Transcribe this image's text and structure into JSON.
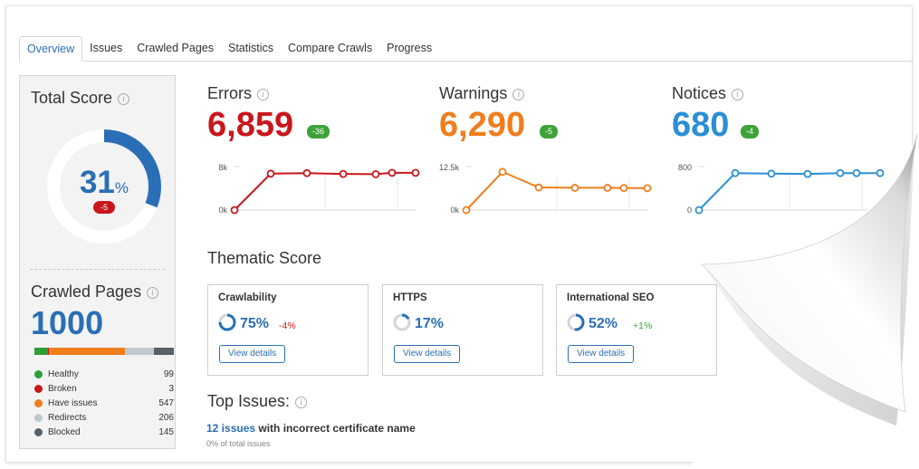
{
  "tabs": [
    "Overview",
    "Issues",
    "Crawled Pages",
    "Statistics",
    "Compare Crawls",
    "Progress"
  ],
  "total_score": {
    "title": "Total Score",
    "value": "31",
    "unit": "%",
    "delta": "-5",
    "fraction": 0.31
  },
  "crawled": {
    "title": "Crawled Pages",
    "count": "1000",
    "legend": [
      {
        "label": "Healthy",
        "value": "99",
        "color": "#2e9e37"
      },
      {
        "label": "Broken",
        "value": "3",
        "color": "#c8171c"
      },
      {
        "label": "Have issues",
        "value": "547",
        "color": "#f07e1d"
      },
      {
        "label": "Redirects",
        "value": "206",
        "color": "#bfc9d0"
      },
      {
        "label": "Blocked",
        "value": "145",
        "color": "#56616a"
      }
    ]
  },
  "metrics": {
    "errors": {
      "title": "Errors",
      "value": "6,859",
      "delta": "-36",
      "color": "#c8171c",
      "ymax_label": "8k",
      "ymin_label": "0k",
      "ymax": 8000,
      "points": [
        0,
        6700,
        6800,
        6650,
        6600,
        6859,
        6859
      ]
    },
    "warnings": {
      "title": "Warnings",
      "value": "6,290",
      "delta": "-5",
      "color": "#f07e1d",
      "ymax_label": "12.5k",
      "ymin_label": "0k",
      "ymax": 12500,
      "points": [
        0,
        11000,
        6500,
        6400,
        6400,
        6350,
        6290
      ]
    },
    "notices": {
      "title": "Notices",
      "value": "680",
      "delta": "-4",
      "color": "#2a8fd6",
      "ymax_label": "800",
      "ymin_label": "0",
      "ymax": 800,
      "points": [
        0,
        680,
        670,
        665,
        680,
        680,
        680
      ]
    }
  },
  "thematic": {
    "title": "Thematic Score",
    "cards": [
      {
        "name": "Crawlability",
        "pct": "75%",
        "fraction": 0.75,
        "delta": "-4%",
        "delta_color": "#c8171c",
        "button": "View details"
      },
      {
        "name": "HTTPS",
        "pct": "17%",
        "fraction": 0.17,
        "delta": "",
        "delta_color": "#3da33a",
        "button": "View details"
      },
      {
        "name": "International SEO",
        "pct": "52%",
        "fraction": 0.52,
        "delta": "+1%",
        "delta_color": "#3da33a",
        "button": "View details"
      }
    ]
  },
  "top_issues": {
    "title": "Top Issues:",
    "link": "12 issues",
    "text": " with incorrect certificate name",
    "sub": "0% of total issues"
  }
}
